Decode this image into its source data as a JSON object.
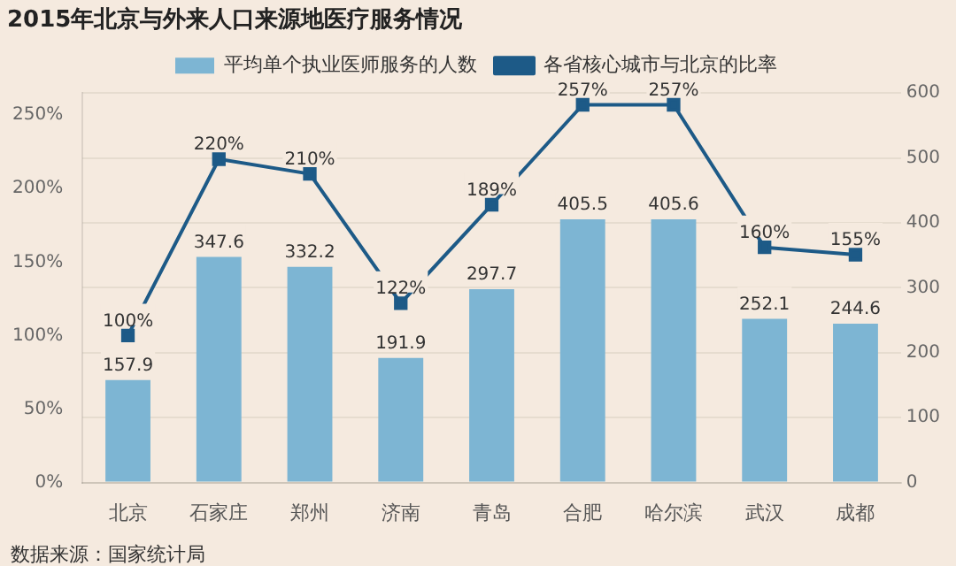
{
  "chart_data": {
    "type": "bar",
    "title": "2015年北京与外来人口来源地医疗服务情况",
    "categories": [
      "北京",
      "石家庄",
      "郑州",
      "济南",
      "青岛",
      "合肥",
      "哈尔滨",
      "武汉",
      "成都"
    ],
    "series": [
      {
        "name": "平均单个执业医师服务的人数",
        "axis": "y2",
        "color": "#7db5d3",
        "values": [
          157.9,
          347.6,
          332.2,
          191.9,
          297.7,
          405.5,
          405.6,
          252.1,
          244.6
        ],
        "value_labels": [
          "157.9",
          "347.6",
          "332.2",
          "191.9",
          "297.7",
          "405.5",
          "405.6",
          "252.1",
          "244.6"
        ]
      },
      {
        "name": "各省核心城市与北京的比率",
        "type": "line",
        "axis": "y",
        "color": "#1d5a87",
        "marker": "square",
        "values": [
          100,
          220,
          210,
          122,
          189,
          257,
          257,
          160,
          155
        ],
        "value_labels": [
          "100%",
          "220%",
          "210%",
          "122%",
          "189%",
          "257%",
          "257%",
          "160%",
          "155%"
        ]
      }
    ],
    "ylim": [
      0,
      265
    ],
    "yticks": [
      {
        "value": 0,
        "label": "0%"
      },
      {
        "value": 50,
        "label": "50%"
      },
      {
        "value": 100,
        "label": "100%"
      },
      {
        "value": 150,
        "label": "150%"
      },
      {
        "value": 200,
        "label": "200%"
      },
      {
        "value": 250,
        "label": "250%"
      }
    ],
    "y2lim": [
      0,
      600
    ],
    "y2ticks": [
      0,
      100,
      200,
      300,
      400,
      500,
      600
    ],
    "grid": "y2",
    "legend": "top",
    "annotations": [
      "数据来源：国家统计局"
    ]
  }
}
